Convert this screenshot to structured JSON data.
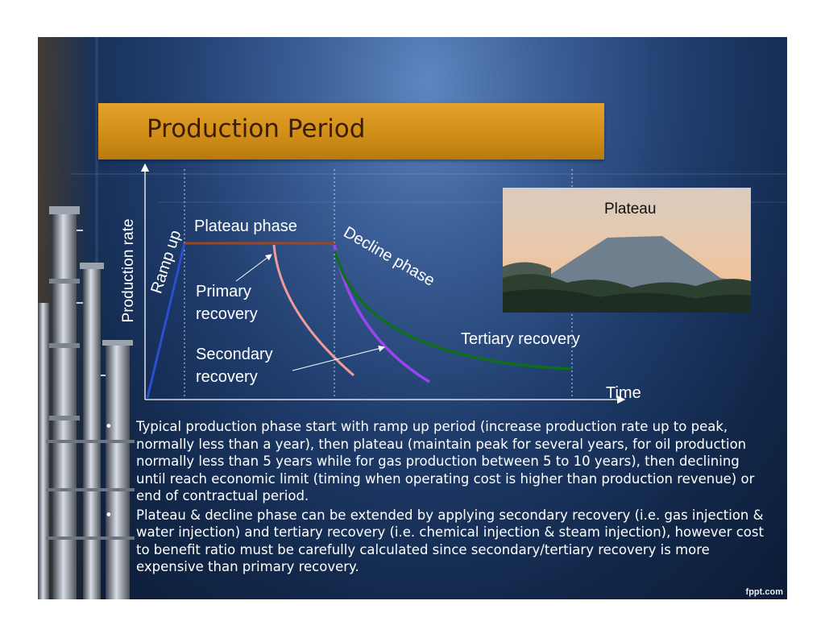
{
  "slide": {
    "title": "Production Period",
    "watermark": "fppt.com"
  },
  "diagram": {
    "y_axis_label": "Production rate",
    "x_axis_label": "Time",
    "labels": {
      "ramp_up": "Ramp up",
      "plateau_phase": "Plateau phase",
      "decline_phase": "Decline phase",
      "primary_line1": "Primary",
      "primary_line2": "recovery",
      "secondary_line1": "Secondary",
      "secondary_line2": "recovery",
      "tertiary": "Tertiary recovery"
    },
    "colors": {
      "ramp_up": "#2a4fd0",
      "plateau": "#a0451e",
      "primary": "#f29a9a",
      "secondary": "#9a46f0",
      "tertiary": "#0e6e1a"
    }
  },
  "photo": {
    "label": "Plateau"
  },
  "bullets": [
    {
      "marker": "•",
      "text": "Typical production phase start with ramp up period (increase production rate up to peak, normally less than a year), then plateau (maintain peak for several years, for oil production normally less than 5 years while for gas production between 5 to 10 years), then declining until reach economic limit (timing when operating cost is higher than production revenue) or end of contractual period."
    },
    {
      "marker": "•",
      "text": "Plateau & decline phase can be extended by applying secondary recovery (i.e. gas injection & water injection) and tertiary recovery (i.e. chemical injection & steam injection), however cost to benefit ratio must be carefully calculated since secondary/tertiary recovery is more expensive than primary recovery."
    }
  ]
}
